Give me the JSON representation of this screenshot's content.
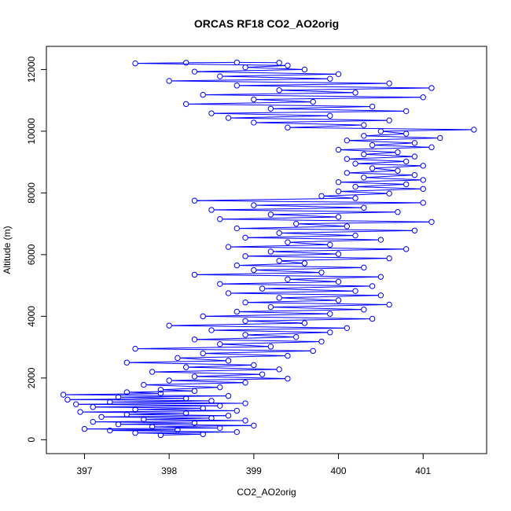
{
  "chart_data": {
    "type": "scatter",
    "title": "ORCAS RF18 CO2_AO2orig",
    "xlabel": "CO2_AO2orig",
    "ylabel": "Altitude (m)",
    "xlim": [
      396.55,
      401.75
    ],
    "ylim": [
      -450,
      12750
    ],
    "x_ticks": [
      397,
      398,
      399,
      400,
      401
    ],
    "y_ticks": [
      0,
      2000,
      4000,
      6000,
      8000,
      10000,
      12000
    ],
    "x_tick_labels": [
      "397",
      "398",
      "399",
      "400",
      "401"
    ],
    "y_tick_labels": [
      "0",
      "2000",
      "4000",
      "6000",
      "8000",
      "10000",
      "12000"
    ],
    "marker": "open-circle",
    "connected": true,
    "grid": false,
    "series": [
      {
        "color": "#0000ff",
        "points": [
          [
            397.9,
            150
          ],
          [
            398.4,
            180
          ],
          [
            397.6,
            220
          ],
          [
            398.8,
            250
          ],
          [
            397.3,
            300
          ],
          [
            398.1,
            320
          ],
          [
            397.0,
            350
          ],
          [
            398.6,
            380
          ],
          [
            397.8,
            420
          ],
          [
            399.0,
            460
          ],
          [
            397.4,
            500
          ],
          [
            398.3,
            540
          ],
          [
            397.1,
            580
          ],
          [
            398.9,
            620
          ],
          [
            397.7,
            660
          ],
          [
            398.5,
            700
          ],
          [
            397.2,
            740
          ],
          [
            398.7,
            780
          ],
          [
            397.5,
            820
          ],
          [
            398.2,
            860
          ],
          [
            396.95,
            900
          ],
          [
            398.8,
            940
          ],
          [
            397.6,
            980
          ],
          [
            398.4,
            1020
          ],
          [
            397.1,
            1060
          ],
          [
            398.6,
            1100
          ],
          [
            396.9,
            1150
          ],
          [
            398.9,
            1180
          ],
          [
            397.3,
            1220
          ],
          [
            398.5,
            1260
          ],
          [
            396.8,
            1300
          ],
          [
            398.2,
            1340
          ],
          [
            397.4,
            1380
          ],
          [
            398.7,
            1420
          ],
          [
            396.75,
            1460
          ],
          [
            397.9,
            1500
          ],
          [
            397.5,
            1540
          ],
          [
            398.3,
            1580
          ],
          [
            397.9,
            1620
          ],
          [
            398.6,
            1700
          ],
          [
            397.7,
            1780
          ],
          [
            398.9,
            1850
          ],
          [
            398.0,
            1920
          ],
          [
            399.4,
            1980
          ],
          [
            398.3,
            2050
          ],
          [
            399.1,
            2120
          ],
          [
            397.8,
            2200
          ],
          [
            399.3,
            2280
          ],
          [
            398.2,
            2350
          ],
          [
            399.0,
            2420
          ],
          [
            397.5,
            2500
          ],
          [
            398.7,
            2560
          ],
          [
            398.1,
            2650
          ],
          [
            399.4,
            2720
          ],
          [
            398.4,
            2800
          ],
          [
            399.7,
            2880
          ],
          [
            397.6,
            2950
          ],
          [
            399.2,
            3020
          ],
          [
            398.6,
            3100
          ],
          [
            399.8,
            3180
          ],
          [
            398.3,
            3250
          ],
          [
            399.5,
            3330
          ],
          [
            398.9,
            3400
          ],
          [
            399.9,
            3480
          ],
          [
            398.5,
            3550
          ],
          [
            400.1,
            3620
          ],
          [
            398.0,
            3700
          ],
          [
            399.6,
            3780
          ],
          [
            398.9,
            3850
          ],
          [
            400.4,
            3920
          ],
          [
            398.4,
            4000
          ],
          [
            399.9,
            4080
          ],
          [
            398.8,
            4150
          ],
          [
            400.3,
            4220
          ],
          [
            399.2,
            4300
          ],
          [
            400.6,
            4380
          ],
          [
            398.9,
            4450
          ],
          [
            400.0,
            4520
          ],
          [
            399.3,
            4600
          ],
          [
            400.5,
            4680
          ],
          [
            398.7,
            4750
          ],
          [
            400.2,
            4820
          ],
          [
            399.1,
            4900
          ],
          [
            400.4,
            4980
          ],
          [
            398.6,
            5050
          ],
          [
            400.0,
            5120
          ],
          [
            399.4,
            5200
          ],
          [
            400.5,
            5280
          ],
          [
            398.3,
            5350
          ],
          [
            399.8,
            5420
          ],
          [
            399.0,
            5500
          ],
          [
            400.3,
            5580
          ],
          [
            398.8,
            5650
          ],
          [
            399.6,
            5720
          ],
          [
            399.3,
            5800
          ],
          [
            400.6,
            5880
          ],
          [
            398.9,
            5950
          ],
          [
            400.0,
            6020
          ],
          [
            399.2,
            6100
          ],
          [
            400.8,
            6180
          ],
          [
            398.7,
            6250
          ],
          [
            399.9,
            6320
          ],
          [
            399.4,
            6400
          ],
          [
            400.5,
            6480
          ],
          [
            398.9,
            6550
          ],
          [
            400.2,
            6620
          ],
          [
            399.3,
            6700
          ],
          [
            400.9,
            6780
          ],
          [
            398.8,
            6850
          ],
          [
            400.1,
            6920
          ],
          [
            399.5,
            7000
          ],
          [
            401.1,
            7060
          ],
          [
            398.6,
            7150
          ],
          [
            400.0,
            7220
          ],
          [
            399.2,
            7300
          ],
          [
            400.7,
            7380
          ],
          [
            398.5,
            7450
          ],
          [
            400.3,
            7520
          ],
          [
            399.0,
            7600
          ],
          [
            401.0,
            7680
          ],
          [
            398.3,
            7750
          ],
          [
            400.2,
            7830
          ],
          [
            399.8,
            7900
          ],
          [
            400.6,
            7980
          ],
          [
            400.0,
            8050
          ],
          [
            401.0,
            8130
          ],
          [
            400.2,
            8200
          ],
          [
            400.8,
            8280
          ],
          [
            400.0,
            8350
          ],
          [
            401.0,
            8420
          ],
          [
            400.3,
            8500
          ],
          [
            400.9,
            8580
          ],
          [
            400.1,
            8650
          ],
          [
            400.7,
            8720
          ],
          [
            400.4,
            8800
          ],
          [
            401.0,
            8880
          ],
          [
            400.2,
            8950
          ],
          [
            400.8,
            9020
          ],
          [
            400.1,
            9100
          ],
          [
            400.9,
            9180
          ],
          [
            400.3,
            9250
          ],
          [
            400.7,
            9320
          ],
          [
            400.0,
            9400
          ],
          [
            401.1,
            9480
          ],
          [
            400.4,
            9550
          ],
          [
            400.9,
            9620
          ],
          [
            400.1,
            9700
          ],
          [
            401.2,
            9780
          ],
          [
            400.3,
            9850
          ],
          [
            400.8,
            9920
          ],
          [
            400.5,
            10000
          ],
          [
            401.6,
            10050
          ],
          [
            399.4,
            10120
          ],
          [
            400.3,
            10200
          ],
          [
            399.0,
            10280
          ],
          [
            400.6,
            10350
          ],
          [
            398.7,
            10430
          ],
          [
            399.9,
            10500
          ],
          [
            398.5,
            10580
          ],
          [
            400.8,
            10650
          ],
          [
            399.2,
            10730
          ],
          [
            400.4,
            10800
          ],
          [
            398.2,
            10880
          ],
          [
            399.7,
            10950
          ],
          [
            399.0,
            11030
          ],
          [
            401.0,
            11100
          ],
          [
            398.4,
            11180
          ],
          [
            400.2,
            11250
          ],
          [
            399.3,
            11330
          ],
          [
            401.1,
            11400
          ],
          [
            398.8,
            11480
          ],
          [
            400.6,
            11550
          ],
          [
            398.0,
            11630
          ],
          [
            399.9,
            11700
          ],
          [
            398.6,
            11780
          ],
          [
            400.0,
            11850
          ],
          [
            398.3,
            11930
          ],
          [
            399.6,
            12000
          ],
          [
            398.9,
            12070
          ],
          [
            399.4,
            12130
          ],
          [
            397.6,
            12200
          ],
          [
            398.2,
            12220
          ],
          [
            398.8,
            12230
          ],
          [
            399.3,
            12220
          ]
        ]
      }
    ]
  }
}
